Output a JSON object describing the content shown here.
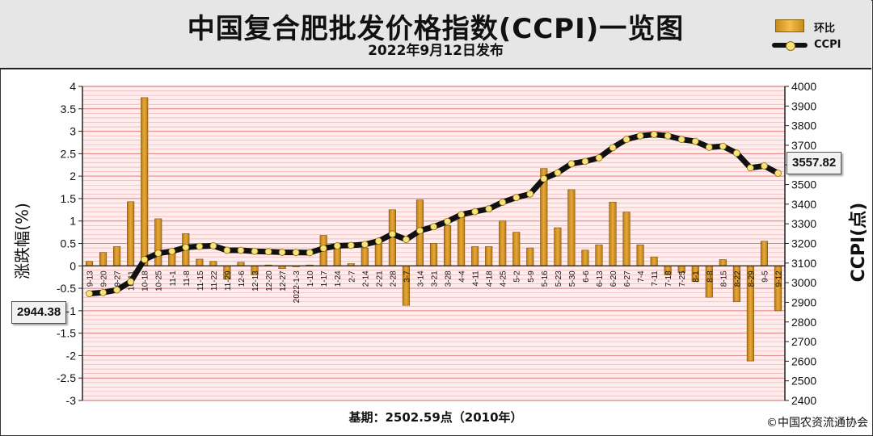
{
  "header": {
    "title": "中国复合肥批发价格指数(CCPI)一览图",
    "subtitle": "2022年9月12日发布"
  },
  "legend": {
    "bar_label": "环比",
    "line_label": "CCPI"
  },
  "footer": {
    "base_text": "基期：2502.59点（2010年）",
    "copyright": "©中国农资流通协会"
  },
  "callouts": {
    "start_value": "2944.38",
    "end_value": "3557.82"
  },
  "colors": {
    "bar": "#e8a93a",
    "line": "#111111",
    "marker": "#f7e37a",
    "grid": "#e07070",
    "plot_bg": "#ffecec"
  },
  "chart_data": {
    "type": "bar",
    "xlabel": "",
    "ylabel": "涨跌幅(%)",
    "y2label": "CCPI(点)",
    "ylim": [
      -3,
      4
    ],
    "y2lim": [
      2400,
      4000
    ],
    "yticks": [
      "4",
      "3.5",
      "3",
      "2.5",
      "2",
      "1.5",
      "1",
      "0.5",
      "0",
      "-0.5",
      "-1",
      "-1.5",
      "-2",
      "-2.5",
      "-3"
    ],
    "y2ticks": [
      "4000",
      "3900",
      "3800",
      "3700",
      "3600",
      "3500",
      "3400",
      "3300",
      "3200",
      "3100",
      "3000",
      "2900",
      "2800",
      "2700",
      "2600",
      "2500",
      "2400"
    ],
    "grid": true,
    "legend_position": "top-right",
    "x_tick_labels": [
      "9-13",
      "9-20",
      "9-27",
      "10-11",
      "10-18",
      "10-25",
      "11-1",
      "11-8",
      "11-15",
      "11-22",
      "11-29",
      "12-6",
      "12-13",
      "12-20",
      "12-27",
      "2022-1-3",
      "1-10",
      "1-17",
      "1-24",
      "2-7",
      "2-14",
      "2-21",
      "2-28",
      "3-7",
      "3-14",
      "3-21",
      "3-28",
      "4-4",
      "4-11",
      "4-18",
      "4-25",
      "5-2",
      "5-9",
      "5-16",
      "5-23",
      "5-30",
      "6-6",
      "6-13",
      "6-20",
      "6-27",
      "7-4",
      "7-11",
      "7-18",
      "7-25",
      "8-1",
      "8-8",
      "8-15",
      "8-22",
      "8-29",
      "9-5",
      "9-12"
    ],
    "series": [
      {
        "name": "环比",
        "type": "bar",
        "axis": "left",
        "values": [
          0.1,
          0.3,
          0.43,
          1.43,
          3.75,
          1.05,
          0.29,
          0.72,
          0.15,
          0.1,
          -0.3,
          0.08,
          -0.2,
          0.02,
          -0.06,
          -0.02,
          0.02,
          0.68,
          0.4,
          0.05,
          0.4,
          0.6,
          1.25,
          -0.88,
          1.47,
          0.5,
          0.9,
          1.1,
          0.43,
          0.43,
          1.0,
          0.75,
          0.4,
          2.17,
          0.85,
          1.7,
          0.35,
          0.47,
          1.42,
          1.2,
          0.47,
          0.2,
          -0.2,
          -0.15,
          -0.35,
          -0.7,
          0.14,
          -0.8,
          -2.12,
          0.55,
          -1.0
        ]
      },
      {
        "name": "CCPI",
        "type": "line",
        "axis": "right",
        "values": [
          2944.38,
          2950,
          2963,
          3005,
          3118,
          3150,
          3160,
          3180,
          3185,
          3188,
          3165,
          3165,
          3160,
          3158,
          3155,
          3154,
          3153,
          3175,
          3188,
          3190,
          3195,
          3212,
          3248,
          3220,
          3265,
          3285,
          3312,
          3347,
          3362,
          3376,
          3410,
          3434,
          3452,
          3530,
          3560,
          3606,
          3618,
          3636,
          3688,
          3730,
          3748,
          3755,
          3748,
          3730,
          3720,
          3690,
          3695,
          3660,
          3585,
          3595,
          3557.82
        ]
      }
    ]
  }
}
